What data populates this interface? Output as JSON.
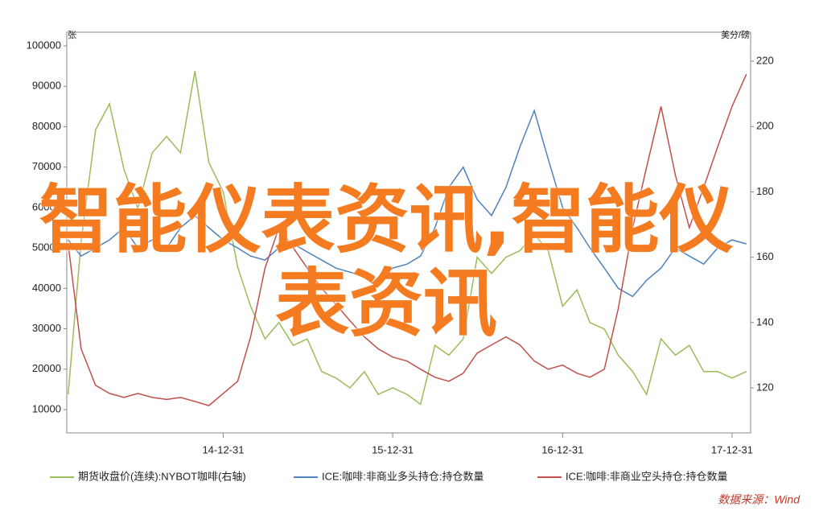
{
  "chart_data": {
    "type": "line",
    "y_axis_label": "张",
    "y2_axis_label": "美分/磅",
    "source": "数据来源：Wind",
    "watermark": "智能仪表资讯,智能仪表资讯",
    "x": [
      "14-01-31",
      "14-02-28",
      "14-03-31",
      "14-04-30",
      "14-05-31",
      "14-06-30",
      "14-07-31",
      "14-08-31",
      "14-09-30",
      "14-10-31",
      "14-11-30",
      "14-12-31",
      "15-01-31",
      "15-02-28",
      "15-03-31",
      "15-04-30",
      "15-05-31",
      "15-06-30",
      "15-07-31",
      "15-08-31",
      "15-09-30",
      "15-10-31",
      "15-11-30",
      "15-12-31",
      "16-01-31",
      "16-02-29",
      "16-03-31",
      "16-04-30",
      "16-05-31",
      "16-06-30",
      "16-07-31",
      "16-08-31",
      "16-09-30",
      "16-10-31",
      "16-11-30",
      "16-12-31",
      "17-01-31",
      "17-02-28",
      "17-03-31",
      "17-04-30",
      "17-05-31",
      "17-06-30",
      "17-07-31",
      "17-08-31",
      "17-09-30",
      "17-10-31",
      "17-11-30",
      "17-12-31",
      "18-01-31"
    ],
    "xlim": [
      "14-01-28",
      "18-02-09"
    ],
    "xticks": [
      "14-12-31",
      "15-12-31",
      "16-12-31",
      "17-12-31"
    ],
    "ylim": [
      4220,
      103390
    ],
    "yticks": [
      {
        "value": 10000,
        "label": "10000"
      },
      {
        "value": 20000,
        "label": "20000"
      },
      {
        "value": 30000,
        "label": "30000"
      },
      {
        "value": 40000,
        "label": "40000"
      },
      {
        "value": 50000,
        "label": "50000"
      },
      {
        "value": 60000,
        "label": "60000"
      },
      {
        "value": 70000,
        "label": "70000"
      },
      {
        "value": 80000,
        "label": "80000"
      },
      {
        "value": 90000,
        "label": "90000"
      },
      {
        "value": 100000,
        "label": "100000"
      }
    ],
    "y2lim": [
      106.2,
      228.9
    ],
    "y2ticks": [
      120,
      140,
      160,
      180,
      200,
      220
    ],
    "series": [
      {
        "name": "期货收盘价(连续):NYBOT咖啡(右轴)",
        "color": "#9bbb59",
        "axis": "y2",
        "values": [
          118,
          165,
          199,
          207,
          187,
          175,
          192,
          197,
          192,
          217,
          189,
          180,
          157,
          145,
          135,
          140,
          133,
          135,
          125,
          123,
          120,
          125,
          118,
          120,
          118,
          115,
          133,
          130,
          135,
          160,
          155,
          160,
          162,
          167,
          162,
          145,
          150,
          140,
          138,
          130,
          125,
          118,
          135,
          130,
          133,
          125,
          125,
          123,
          125
        ]
      },
      {
        "name": "ICE:咖啡:非商业多头持仓:持仓数量",
        "color": "#4f81bd",
        "values": [
          52000,
          48000,
          50000,
          52000,
          55000,
          50000,
          52000,
          50000,
          55000,
          58000,
          55000,
          52000,
          50000,
          48000,
          47000,
          50000,
          51000,
          49000,
          47000,
          45000,
          44000,
          43000,
          42000,
          45000,
          46000,
          48000,
          55000,
          65000,
          70000,
          62000,
          58000,
          65000,
          75000,
          84000,
          72000,
          60000,
          55000,
          50000,
          45000,
          40000,
          38000,
          42000,
          45000,
          50000,
          48000,
          46000,
          50000,
          52000,
          51000
        ]
      },
      {
        "name": "ICE:咖啡:非商业空头持仓:持仓数量",
        "color": "#c0504d",
        "values": [
          51000,
          25000,
          16000,
          14000,
          13000,
          14000,
          13000,
          12500,
          13000,
          12000,
          11000,
          14000,
          17000,
          28000,
          45000,
          55000,
          50000,
          45000,
          40000,
          36000,
          32000,
          28000,
          25000,
          23000,
          22000,
          20000,
          18000,
          17000,
          19000,
          24000,
          26000,
          28000,
          26000,
          22000,
          20000,
          21000,
          19000,
          18000,
          20000,
          35000,
          55000,
          70000,
          85000,
          68000,
          55000,
          65000,
          75000,
          85000,
          93000
        ]
      }
    ]
  }
}
